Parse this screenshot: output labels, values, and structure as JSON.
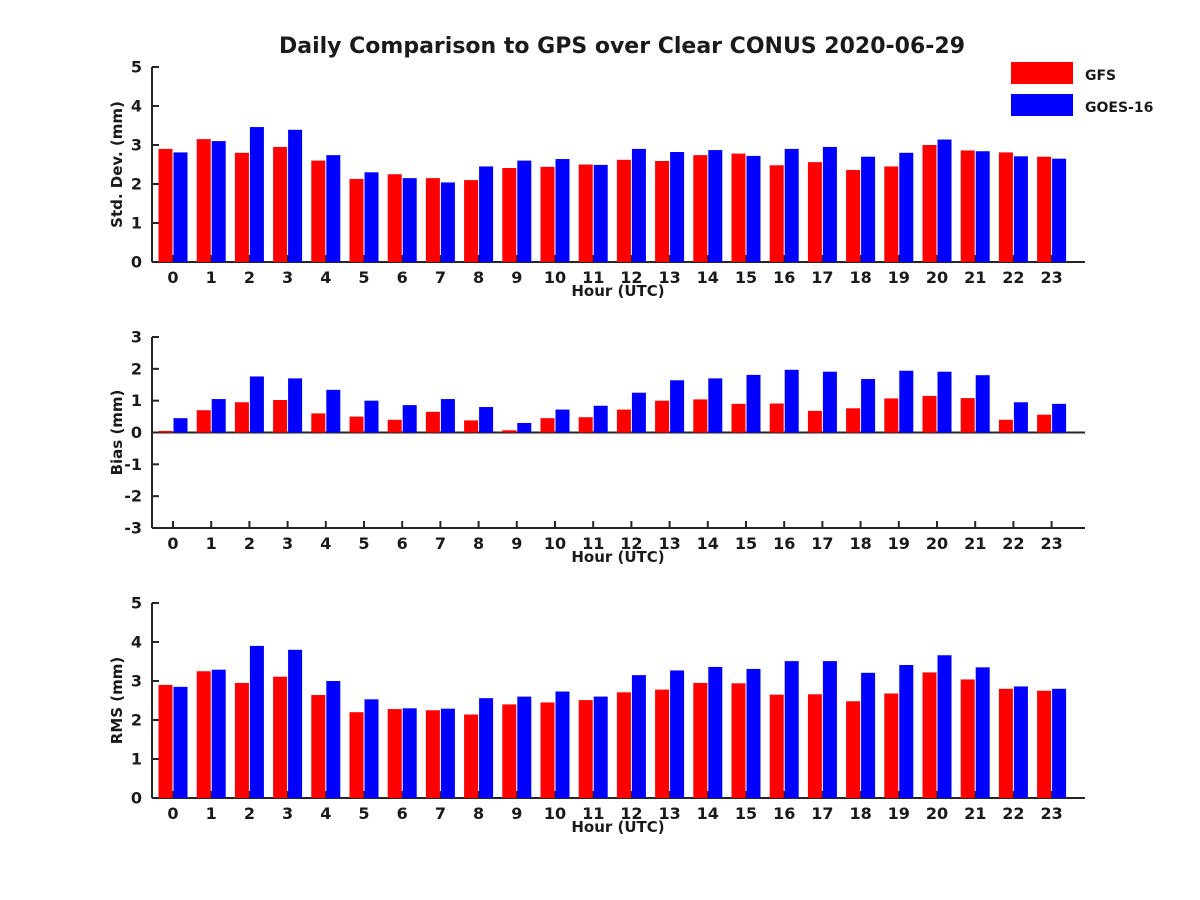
{
  "chart_data": {
    "type": "bar",
    "title": "Daily Comparison to GPS over Clear CONUS 2020-06-29",
    "grid": false,
    "legend_position": "top-right",
    "legend": [
      {
        "label": "GFS",
        "color": "#ff0000"
      },
      {
        "label": "GOES-16",
        "color": "#0000ff"
      }
    ],
    "categories": [
      "0",
      "1",
      "2",
      "3",
      "4",
      "5",
      "6",
      "7",
      "8",
      "9",
      "10",
      "11",
      "12",
      "13",
      "14",
      "15",
      "16",
      "17",
      "18",
      "19",
      "20",
      "21",
      "22",
      "23"
    ],
    "panels": [
      {
        "ylabel": "Std. Dev. (mm)",
        "xlabel": "Hour (UTC)",
        "ylim": [
          0,
          5
        ],
        "yticks": [
          0,
          1,
          2,
          3,
          4,
          5
        ],
        "series": [
          {
            "name": "GFS",
            "values": [
              2.9,
              3.15,
              2.8,
              2.95,
              2.6,
              2.13,
              2.25,
              2.15,
              2.1,
              2.41,
              2.44,
              2.5,
              2.62,
              2.59,
              2.74,
              2.78,
              2.48,
              2.56,
              2.36,
              2.45,
              3.0,
              2.86,
              2.81,
              2.7
            ]
          },
          {
            "name": "GOES-16",
            "values": [
              2.81,
              3.1,
              3.46,
              3.39,
              2.74,
              2.3,
              2.15,
              2.04,
              2.45,
              2.6,
              2.64,
              2.49,
              2.9,
              2.82,
              2.87,
              2.72,
              2.9,
              2.95,
              2.7,
              2.8,
              3.14,
              2.84,
              2.71,
              2.65
            ]
          }
        ]
      },
      {
        "ylabel": "Bias (mm)",
        "xlabel": "Hour (UTC)",
        "ylim": [
          -3,
          3
        ],
        "yticks": [
          -3,
          -2,
          -1,
          0,
          1,
          2,
          3
        ],
        "series": [
          {
            "name": "GFS",
            "values": [
              0.05,
              0.7,
              0.95,
              1.02,
              0.6,
              0.5,
              0.4,
              0.65,
              0.38,
              0.07,
              0.45,
              0.48,
              0.72,
              1.0,
              1.04,
              0.9,
              0.91,
              0.68,
              0.76,
              1.07,
              1.15,
              1.08,
              0.4,
              0.56
            ]
          },
          {
            "name": "GOES-16",
            "values": [
              0.45,
              1.05,
              1.76,
              1.7,
              1.34,
              1.0,
              0.86,
              1.05,
              0.8,
              0.3,
              0.72,
              0.84,
              1.25,
              1.64,
              1.7,
              1.81,
              1.97,
              1.91,
              1.68,
              1.94,
              1.91,
              1.8,
              0.95,
              0.9
            ]
          }
        ]
      },
      {
        "ylabel": "RMS (mm)",
        "xlabel": "Hour (UTC)",
        "ylim": [
          0,
          5
        ],
        "yticks": [
          0,
          1,
          2,
          3,
          4,
          5
        ],
        "series": [
          {
            "name": "GFS",
            "values": [
              2.9,
              3.25,
              2.95,
              3.11,
              2.64,
              2.2,
              2.28,
              2.25,
              2.14,
              2.4,
              2.45,
              2.51,
              2.71,
              2.78,
              2.95,
              2.94,
              2.65,
              2.66,
              2.48,
              2.68,
              3.22,
              3.04,
              2.8,
              2.75
            ]
          },
          {
            "name": "GOES-16",
            "values": [
              2.85,
              3.29,
              3.9,
              3.8,
              3.0,
              2.53,
              2.3,
              2.29,
              2.56,
              2.6,
              2.73,
              2.6,
              3.15,
              3.27,
              3.36,
              3.31,
              3.51,
              3.51,
              3.21,
              3.41,
              3.66,
              3.35,
              2.86,
              2.8
            ]
          }
        ]
      }
    ]
  }
}
